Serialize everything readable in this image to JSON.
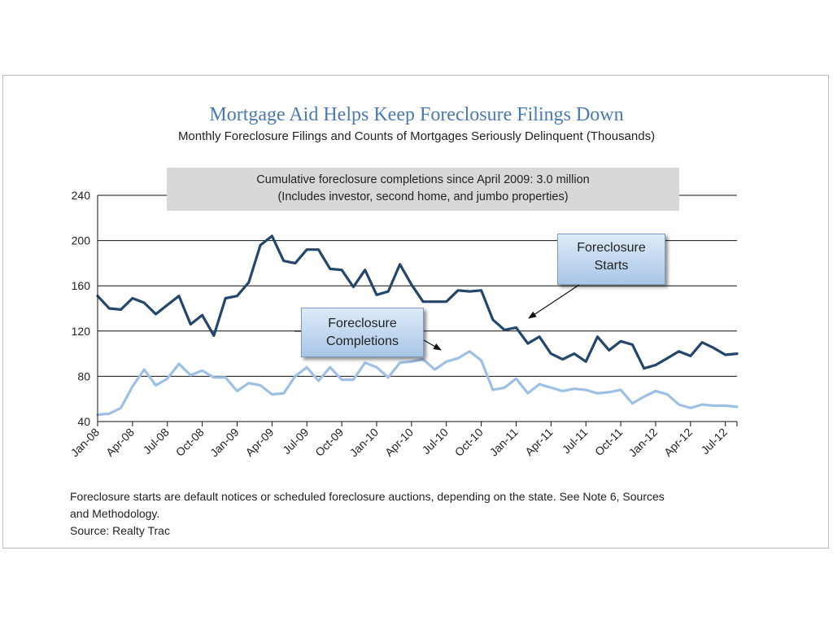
{
  "chart_data": {
    "type": "line",
    "title": "Mortgage Aid Helps Keep Foreclosure Filings Down",
    "subtitle": "Monthly Foreclosure Filings and Counts of Mortgages Seriously Delinquent (Thousands)",
    "note_lines": [
      "Cumulative foreclosure completions since April 2009: 3.0 million",
      "(Includes investor, second home, and jumbo properties)"
    ],
    "x_tick_labels": [
      "Jan-08",
      "Apr-08",
      "Jul-08",
      "Oct-08",
      "Jan-09",
      "Apr-09",
      "Jul-09",
      "Oct-09",
      "Jan-10",
      "Apr-10",
      "Jul-10",
      "Oct-10",
      "Jan-11",
      "Apr-11",
      "Jul-11",
      "Oct-11",
      "Jan-12",
      "Apr-12",
      "Jul-12"
    ],
    "x_start": "Jan-08",
    "ylim": [
      40,
      240
    ],
    "y_ticks": [
      40,
      80,
      120,
      160,
      200,
      240
    ],
    "grid": true,
    "series": [
      {
        "name": "Foreclosure Starts",
        "color": "#24466b",
        "values": [
          151,
          140,
          139,
          149,
          145,
          135,
          143,
          151,
          126,
          134,
          116,
          149,
          151,
          163,
          196,
          204,
          182,
          180,
          192,
          192,
          175,
          174,
          159,
          174,
          152,
          155,
          179,
          161,
          146,
          146,
          146,
          156,
          155,
          156,
          130,
          121,
          123,
          109,
          115,
          100,
          95,
          100,
          93,
          115,
          103,
          111,
          108,
          87,
          90,
          96,
          102,
          98,
          110,
          105,
          99,
          100
        ]
      },
      {
        "name": "Foreclosure Completions",
        "color": "#9fc0e5",
        "values": [
          46,
          47,
          52,
          71,
          86,
          72,
          78,
          91,
          81,
          85,
          79,
          79,
          67,
          74,
          72,
          64,
          65,
          80,
          88,
          76,
          88,
          77,
          77,
          92,
          88,
          79,
          92,
          93,
          95,
          86,
          93,
          96,
          102,
          94,
          68,
          70,
          78,
          65,
          73,
          70,
          67,
          69,
          68,
          65,
          66,
          68,
          56,
          62,
          67,
          64,
          55,
          52,
          55,
          54,
          54,
          53
        ]
      }
    ],
    "callouts": {
      "starts_label": "Foreclosure Starts",
      "completions_label": "Foreclosure Completions"
    }
  },
  "footer": {
    "line1": "Foreclosure starts are default notices or scheduled foreclosure auctions, depending on the state. See Note 6, Sources",
    "line2": "and Methodology.",
    "line3": "Source: Realty Trac"
  }
}
